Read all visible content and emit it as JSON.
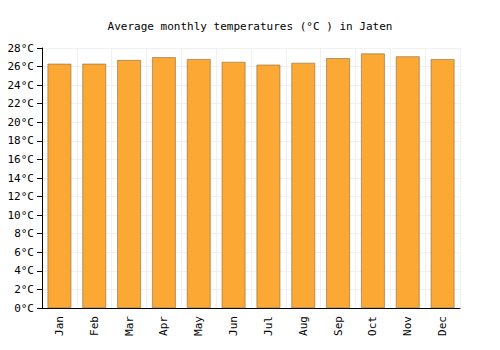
{
  "chart_data": {
    "type": "bar",
    "title": "Average monthly temperatures (°C ) in Jaten",
    "categories": [
      "Jan",
      "Feb",
      "Mar",
      "Apr",
      "May",
      "Jun",
      "Jul",
      "Aug",
      "Sep",
      "Oct",
      "Nov",
      "Dec"
    ],
    "values": [
      26.3,
      26.3,
      26.7,
      27.0,
      26.8,
      26.5,
      26.2,
      26.4,
      26.9,
      27.4,
      27.1,
      26.8
    ],
    "color": "#fca834",
    "ylim": [
      0,
      28
    ],
    "yticks": [
      {
        "value": 0,
        "label": "0°C"
      },
      {
        "value": 2,
        "label": "2°C"
      },
      {
        "value": 4,
        "label": "4°C"
      },
      {
        "value": 6,
        "label": "6°C"
      },
      {
        "value": 8,
        "label": "8°C"
      },
      {
        "value": 10,
        "label": "10°C"
      },
      {
        "value": 12,
        "label": "12°C"
      },
      {
        "value": 14,
        "label": "14°C"
      },
      {
        "value": 16,
        "label": "16°C"
      },
      {
        "value": 18,
        "label": "18°C"
      },
      {
        "value": 20,
        "label": "20°C"
      },
      {
        "value": 22,
        "label": "22°C"
      },
      {
        "value": 24,
        "label": "24°C"
      },
      {
        "value": 26,
        "label": "26°C"
      },
      {
        "value": 28,
        "label": "28°C"
      }
    ],
    "grid": true
  }
}
